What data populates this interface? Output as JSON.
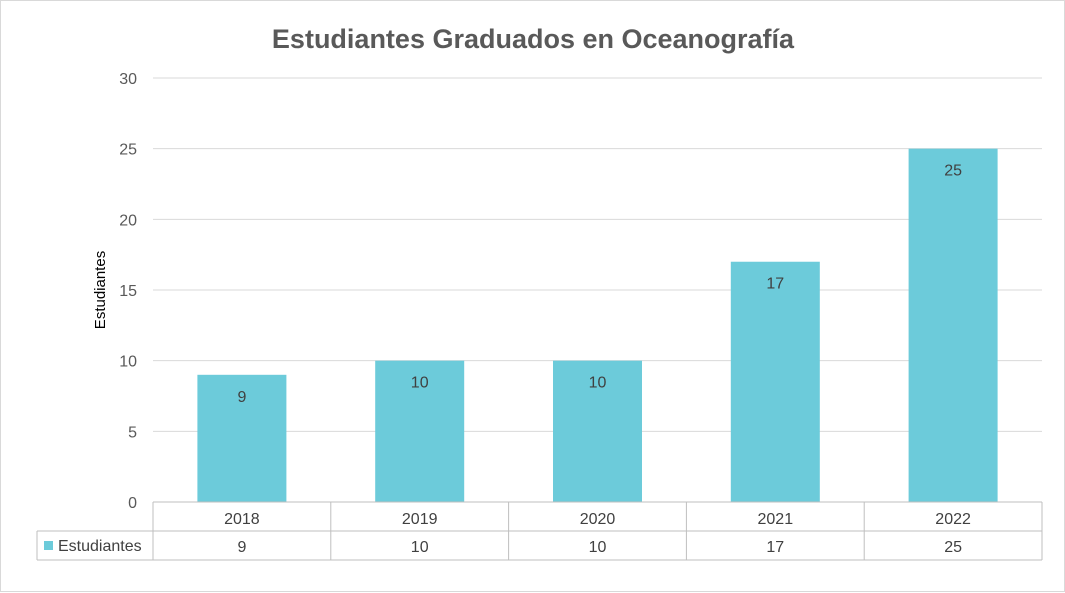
{
  "chart_data": {
    "type": "bar",
    "title": "Estudiantes Graduados en Oceanografía",
    "xlabel": "",
    "ylabel": "Estudiantes",
    "categories": [
      "2018",
      "2019",
      "2020",
      "2021",
      "2022"
    ],
    "series": [
      {
        "name": "Estudiantes",
        "values": [
          9,
          10,
          10,
          17,
          25
        ],
        "color": "#6ccbda"
      }
    ],
    "ylim": [
      0,
      30
    ],
    "yticks": [
      "0",
      "5",
      "10",
      "15",
      "20",
      "25",
      "30"
    ],
    "grid": true,
    "legend": "data-table",
    "data_labels": [
      "9",
      "10",
      "10",
      "17",
      "25"
    ],
    "data_table": {
      "rows": [
        {
          "label": "Estudiantes",
          "values": [
            "9",
            "10",
            "10",
            "17",
            "25"
          ]
        }
      ]
    }
  }
}
